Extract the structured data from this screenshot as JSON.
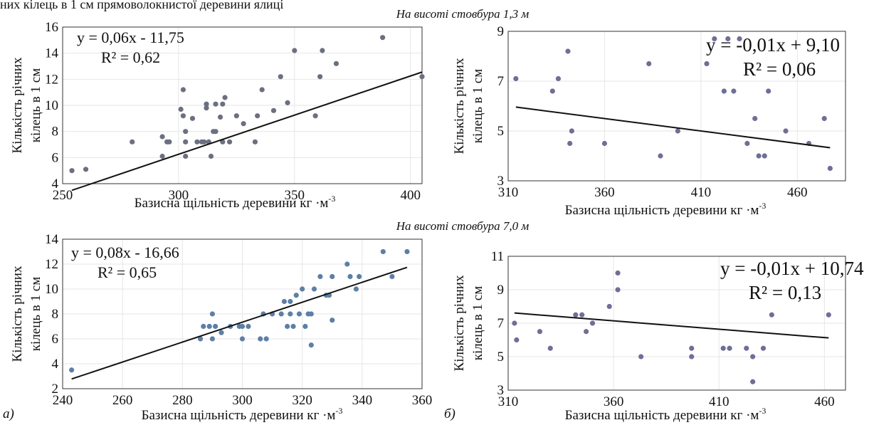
{
  "top_text": "них кілець в 1 см прямоволокнистої деревини ялиці",
  "subtitles": [
    "На висоті стовбура 1,3 м",
    "На висоті стовбура 7,0 м"
  ],
  "panel_letters": [
    "а)",
    "б)"
  ],
  "chart_data": [
    {
      "type": "scatter",
      "subtitle": "",
      "xlabel": "Базисна щільність деревини кг ·м",
      "xlabel_sup": "-3",
      "ylabel": [
        "Кількість річних",
        "кілець в 1 см"
      ],
      "xlim": [
        250,
        405
      ],
      "ylim": [
        4,
        16
      ],
      "xticks": [
        250,
        300,
        350,
        400
      ],
      "yticks": [
        4,
        6,
        8,
        10,
        12,
        14,
        16
      ],
      "trendline": {
        "slope": 0.06,
        "intercept": -11.75
      },
      "equation": "y = 0,06x - 11,75",
      "r2": "R² = 0,62",
      "eq_style": "small",
      "points": [
        [
          254,
          5
        ],
        [
          260,
          5.1
        ],
        [
          280,
          7.2
        ],
        [
          293,
          6.1
        ],
        [
          293,
          7.6
        ],
        [
          295,
          7.2
        ],
        [
          296,
          7.2
        ],
        [
          301,
          9.7
        ],
        [
          302,
          9.2
        ],
        [
          302,
          11.2
        ],
        [
          303,
          6.1
        ],
        [
          303,
          8
        ],
        [
          303,
          7.2
        ],
        [
          306,
          9
        ],
        [
          308,
          7.2
        ],
        [
          310,
          7.2
        ],
        [
          311,
          7.2
        ],
        [
          312,
          9.8
        ],
        [
          312,
          10.1
        ],
        [
          313,
          7.2
        ],
        [
          314,
          6.1
        ],
        [
          315,
          8
        ],
        [
          316,
          10.1
        ],
        [
          316,
          8
        ],
        [
          318,
          9.1
        ],
        [
          319,
          7.2
        ],
        [
          319,
          10.1
        ],
        [
          320,
          10.6
        ],
        [
          322,
          7.2
        ],
        [
          325,
          9.2
        ],
        [
          328,
          8.6
        ],
        [
          333,
          7.2
        ],
        [
          334,
          9.2
        ],
        [
          336,
          11.2
        ],
        [
          341,
          9.6
        ],
        [
          344,
          12.2
        ],
        [
          347,
          10.2
        ],
        [
          350,
          14.2
        ],
        [
          359,
          9.2
        ],
        [
          361,
          12.2
        ],
        [
          362,
          14.2
        ],
        [
          368,
          13.2
        ],
        [
          388,
          15.2
        ],
        [
          405,
          12.2
        ]
      ]
    },
    {
      "type": "scatter",
      "subtitle": "На висоті стовбура 1,3 м",
      "xlabel": "Базисна щільність деревини кг ·м",
      "xlabel_sup": "-3",
      "ylabel": [
        "Кількість річних",
        "кілець в 1 см"
      ],
      "xlim": [
        310,
        485
      ],
      "ylim": [
        3,
        9
      ],
      "xticks": [
        310,
        360,
        410,
        460
      ],
      "yticks": [
        3,
        5,
        7,
        9
      ],
      "trendline": {
        "slope": -0.01,
        "intercept": 9.1
      },
      "equation": "y = -0,01x + 9,10",
      "r2": "R² = 0,06",
      "eq_style": "big",
      "points": [
        [
          314,
          7.1
        ],
        [
          333,
          6.6
        ],
        [
          336,
          7.1
        ],
        [
          341,
          8.2
        ],
        [
          342,
          4.5
        ],
        [
          343,
          5
        ],
        [
          360,
          4.5
        ],
        [
          383,
          7.7
        ],
        [
          389,
          4
        ],
        [
          398,
          5
        ],
        [
          413,
          7.7
        ],
        [
          417,
          8.7
        ],
        [
          422,
          6.6
        ],
        [
          424,
          8.7
        ],
        [
          427,
          6.6
        ],
        [
          430,
          8.7
        ],
        [
          434,
          4.5
        ],
        [
          438,
          5.5
        ],
        [
          440,
          4
        ],
        [
          443,
          4
        ],
        [
          445,
          6.6
        ],
        [
          454,
          5
        ],
        [
          466,
          4.5
        ],
        [
          474,
          5.5
        ],
        [
          477,
          3.5
        ]
      ]
    },
    {
      "type": "scatter",
      "subtitle": "",
      "xlabel": "Базисна щільність деревини кг ·м",
      "xlabel_sup": "-3",
      "ylabel": [
        "Кількість річних",
        "кілець в 1 см"
      ],
      "xlim": [
        240,
        360
      ],
      "ylim": [
        2,
        14
      ],
      "xticks": [
        240,
        260,
        280,
        300,
        320,
        340,
        360
      ],
      "yticks": [
        2,
        4,
        6,
        8,
        10,
        12,
        14
      ],
      "trendline": {
        "slope": 0.08,
        "intercept": -16.66
      },
      "equation": "y = 0,08x - 16,66",
      "r2": "R² = 0,65",
      "eq_style": "small",
      "points": [
        [
          243,
          3.5
        ],
        [
          286,
          6
        ],
        [
          287,
          7
        ],
        [
          289,
          7
        ],
        [
          290,
          6
        ],
        [
          290,
          8
        ],
        [
          291,
          7
        ],
        [
          293,
          6.5
        ],
        [
          296,
          7
        ],
        [
          299,
          7
        ],
        [
          300,
          7
        ],
        [
          300,
          6
        ],
        [
          302,
          7
        ],
        [
          306,
          6
        ],
        [
          307,
          8
        ],
        [
          308,
          6
        ],
        [
          310,
          8
        ],
        [
          313,
          8
        ],
        [
          314,
          9
        ],
        [
          315,
          7
        ],
        [
          316,
          9
        ],
        [
          316,
          8
        ],
        [
          317,
          7
        ],
        [
          318,
          9.5
        ],
        [
          319,
          8
        ],
        [
          320,
          10
        ],
        [
          321,
          7
        ],
        [
          322,
          8
        ],
        [
          323,
          5.5
        ],
        [
          323,
          8
        ],
        [
          324,
          10
        ],
        [
          326,
          11
        ],
        [
          328,
          9.5
        ],
        [
          329,
          9.5
        ],
        [
          330,
          11
        ],
        [
          330,
          7.5
        ],
        [
          335,
          12
        ],
        [
          336,
          11
        ],
        [
          338,
          10
        ],
        [
          339,
          11
        ],
        [
          347,
          13
        ],
        [
          350,
          11
        ],
        [
          355,
          13
        ]
      ]
    },
    {
      "type": "scatter",
      "subtitle": "На висоті стовбура 7,0 м",
      "xlabel": "Базисна щільність деревини кг ·м",
      "xlabel_sup": "-3",
      "ylabel": [
        "Кількість річних",
        "кілець в 1 см"
      ],
      "xlim": [
        310,
        470
      ],
      "ylim": [
        3,
        11
      ],
      "xticks": [
        310,
        360,
        410,
        460
      ],
      "yticks": [
        3,
        5,
        7,
        9,
        11
      ],
      "trendline": {
        "slope": -0.01,
        "intercept": 10.74
      },
      "equation": "y = -0,01x + 10,74",
      "r2": "R² = 0,13",
      "eq_style": "big",
      "points": [
        [
          313,
          7
        ],
        [
          314,
          6
        ],
        [
          325,
          6.5
        ],
        [
          330,
          5.5
        ],
        [
          342,
          7.5
        ],
        [
          345,
          7.5
        ],
        [
          347,
          6.5
        ],
        [
          350,
          7
        ],
        [
          358,
          8
        ],
        [
          362,
          9
        ],
        [
          362,
          10
        ],
        [
          373,
          5
        ],
        [
          397,
          5
        ],
        [
          397,
          5.5
        ],
        [
          412,
          5.5
        ],
        [
          415,
          5.5
        ],
        [
          423,
          5.5
        ],
        [
          426,
          5
        ],
        [
          426,
          3.5
        ],
        [
          431,
          5.5
        ],
        [
          435,
          7.5
        ],
        [
          462,
          7.5
        ]
      ]
    }
  ]
}
